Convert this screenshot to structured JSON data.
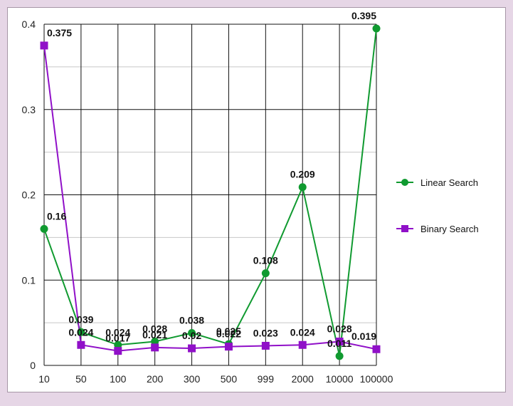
{
  "chart_data": {
    "type": "line",
    "categories": [
      "10",
      "50",
      "100",
      "200",
      "300",
      "500",
      "999",
      "2000",
      "10000",
      "100000"
    ],
    "series": [
      {
        "name": "Linear Search",
        "color": "#109a30",
        "marker": "circle",
        "values": [
          0.16,
          0.039,
          0.024,
          0.028,
          0.038,
          0.025,
          0.108,
          0.209,
          0.011,
          0.395
        ],
        "labels": [
          "0.16",
          "0.039",
          "0.024",
          "0.028",
          "0.038",
          "0.025",
          "0.108",
          "0.209",
          "0.011",
          "0.395"
        ]
      },
      {
        "name": "Binary Search",
        "color": "#9010c8",
        "marker": "square",
        "values": [
          0.375,
          0.024,
          0.017,
          0.021,
          0.02,
          0.022,
          0.023,
          0.024,
          0.028,
          0.019
        ],
        "labels": [
          "0.375",
          "0.024",
          "0.017",
          "0.021",
          "0.02",
          "0.022",
          "0.023",
          "0.024",
          "0.028",
          "0.019"
        ]
      }
    ],
    "y_ticks": [
      "0",
      "0.1",
      "0.2",
      "0.3",
      "0.4"
    ],
    "ylim": [
      0,
      0.4
    ],
    "title": "",
    "xlabel": "",
    "ylabel": "",
    "grid": true,
    "legend_position": "right"
  }
}
